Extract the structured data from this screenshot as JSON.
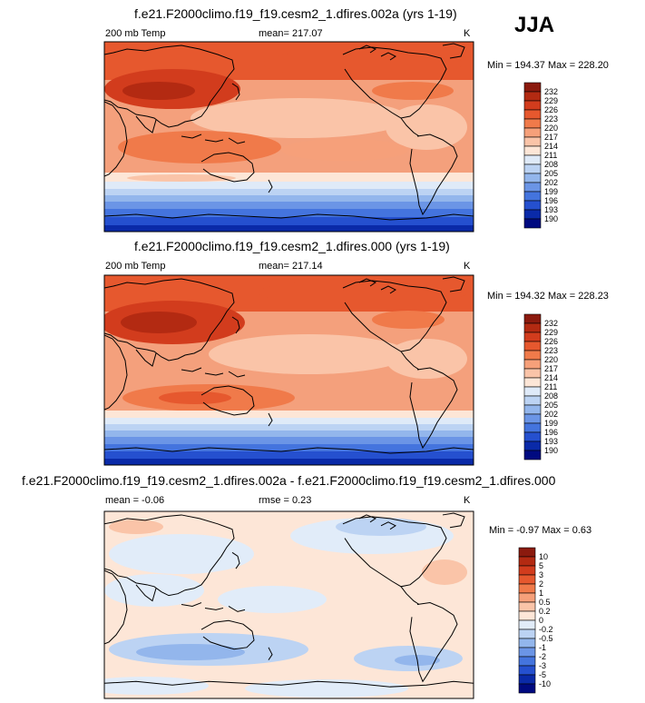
{
  "season_label": "JJA",
  "panels": [
    {
      "title": "f.e21.F2000climo.f19_f19.cesm2_1.dfires.002a (yrs 1-19)",
      "left_label": "200 mb Temp",
      "center_label": "mean= 217.07",
      "units": "K",
      "minmax": "Min = 194.37 Max = 228.20",
      "colorbar_labels": [
        "232",
        "229",
        "226",
        "223",
        "220",
        "217",
        "214",
        "211",
        "208",
        "205",
        "202",
        "199",
        "196",
        "193",
        "190"
      ]
    },
    {
      "title": "f.e21.F2000climo.f19_f19.cesm2_1.dfires.000 (yrs 1-19)",
      "left_label": "200 mb Temp",
      "center_label": "mean= 217.14",
      "units": "K",
      "minmax": "Min = 194.32 Max = 228.23",
      "colorbar_labels": [
        "232",
        "229",
        "226",
        "223",
        "220",
        "217",
        "214",
        "211",
        "208",
        "205",
        "202",
        "199",
        "196",
        "193",
        "190"
      ]
    },
    {
      "title": "f.e21.F2000climo.f19_f19.cesm2_1.dfires.002a - f.e21.F2000climo.f19_f19.cesm2_1.dfires.000",
      "left_label": "mean =  -0.06",
      "center_label": "rmse =   0.23",
      "units": "K",
      "minmax": "Min =  -0.97 Max =   0.63",
      "colorbar_labels": [
        "10",
        "5",
        "3",
        "2",
        "1",
        "0.5",
        "0.2",
        "0",
        "-0.2",
        "-0.5",
        "-1",
        "-2",
        "-3",
        "-5",
        "-10"
      ]
    }
  ],
  "chart_data": [
    {
      "type": "heatmap",
      "title": "f.e21.F2000climo.f19_f19.cesm2_1.dfires.002a (yrs 1-19)",
      "variable": "200 mb Temp",
      "units": "K",
      "mean": 217.07,
      "min": 194.37,
      "max": 228.2,
      "levels": [
        190,
        193,
        196,
        199,
        202,
        205,
        208,
        211,
        214,
        217,
        220,
        223,
        226,
        229,
        232
      ]
    },
    {
      "type": "heatmap",
      "title": "f.e21.F2000climo.f19_f19.cesm2_1.dfires.000 (yrs 1-19)",
      "variable": "200 mb Temp",
      "units": "K",
      "mean": 217.14,
      "min": 194.32,
      "max": 228.23,
      "levels": [
        190,
        193,
        196,
        199,
        202,
        205,
        208,
        211,
        214,
        217,
        220,
        223,
        226,
        229,
        232
      ]
    },
    {
      "type": "heatmap",
      "title": "f.e21.F2000climo.f19_f19.cesm2_1.dfires.002a - f.e21.F2000climo.f19_f19.cesm2_1.dfires.000",
      "units": "K",
      "mean": -0.06,
      "rmse": 0.23,
      "min": -0.97,
      "max": 0.63,
      "levels": [
        -10,
        -5,
        -3,
        -2,
        -1,
        -0.5,
        -0.2,
        0,
        0.2,
        0.5,
        1,
        2,
        3,
        5,
        10
      ]
    }
  ],
  "colors": {
    "abs_scale": [
      "#8b1a0e",
      "#b32a12",
      "#d23c1d",
      "#e6582e",
      "#f07a4a",
      "#f6a07a",
      "#fac4a8",
      "#fde6d7",
      "#dfeaf8",
      "#bcd3f3",
      "#93b6ec",
      "#6b95e6",
      "#4474de",
      "#2550cf",
      "#0a2aa8",
      "#000a80"
    ],
    "diff_scale": [
      "#8b1a0e",
      "#b32a12",
      "#d23c1d",
      "#e6582e",
      "#f07a4a",
      "#f6a07a",
      "#fac4a8",
      "#fde6d7",
      "#e1ecf9",
      "#bcd3f3",
      "#93b6ec",
      "#6b95e6",
      "#4474de",
      "#2550cf",
      "#0a2aa8",
      "#000a80"
    ]
  }
}
